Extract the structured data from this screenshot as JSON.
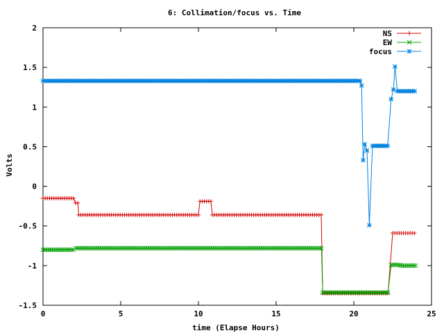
{
  "chart_data": {
    "type": "line",
    "title": "6: Collimation/focus vs. Time",
    "xlabel": "time (Elapse Hours)",
    "ylabel": "Volts",
    "xlim": [
      0,
      25
    ],
    "ylim": [
      -1.5,
      2
    ],
    "xticks": [
      "0",
      "5",
      "10",
      "15",
      "20",
      "25"
    ],
    "xtick_values": [
      0,
      5,
      10,
      15,
      20,
      25
    ],
    "yticks": [
      "-1.5",
      "-1",
      "-0.5",
      "0",
      "0.5",
      "1",
      "1.5",
      "2"
    ],
    "ytick_values": [
      -1.5,
      -1,
      -0.5,
      0,
      0.5,
      1,
      1.5,
      2
    ],
    "grid": false,
    "legend_position": "top-right",
    "series": [
      {
        "name": "NS",
        "color": "#d40000",
        "marker": "plus",
        "segments": [
          {
            "from": 0.0,
            "to": 2.0,
            "y": -0.15
          },
          {
            "from": 2.1,
            "to": 2.3,
            "y": -0.21
          },
          {
            "from": 2.3,
            "to": 10.0,
            "y": -0.36
          },
          {
            "from": 10.1,
            "to": 10.8,
            "y": -0.19
          },
          {
            "from": 10.9,
            "to": 18.0,
            "y": -0.36
          },
          {
            "from": 18.0,
            "to": 22.3,
            "y": -1.35
          },
          {
            "from": 22.5,
            "to": 24.0,
            "y": -0.59
          }
        ]
      },
      {
        "name": "EW",
        "color": "#00a000",
        "marker": "x",
        "segments": [
          {
            "from": 0.0,
            "to": 2.0,
            "y": -0.8
          },
          {
            "from": 2.1,
            "to": 18.0,
            "y": -0.78
          },
          {
            "from": 18.0,
            "to": 22.3,
            "y": -1.34
          },
          {
            "from": 22.4,
            "to": 23.0,
            "y": -0.99
          },
          {
            "from": 23.0,
            "to": 24.0,
            "y": -1.0
          }
        ]
      },
      {
        "name": "focus",
        "color": "#0080e0",
        "marker": "star",
        "segments": [
          {
            "from": 0.0,
            "to": 20.3,
            "y": 1.33
          },
          {
            "from": 20.4,
            "to": 20.4,
            "y": 1.33
          },
          {
            "from": 20.5,
            "to": 20.5,
            "y": 1.27
          },
          {
            "from": 20.6,
            "to": 20.6,
            "y": 0.33
          },
          {
            "from": 20.7,
            "to": 20.7,
            "y": 0.53
          },
          {
            "from": 20.85,
            "to": 20.85,
            "y": 0.45
          },
          {
            "from": 21.0,
            "to": 21.0,
            "y": -0.49
          },
          {
            "from": 21.2,
            "to": 22.3,
            "y": 0.51
          },
          {
            "from": 22.4,
            "to": 22.4,
            "y": 1.1
          },
          {
            "from": 22.55,
            "to": 22.55,
            "y": 1.22
          },
          {
            "from": 22.65,
            "to": 22.65,
            "y": 1.51
          },
          {
            "from": 22.8,
            "to": 24.0,
            "y": 1.2
          }
        ]
      }
    ]
  }
}
